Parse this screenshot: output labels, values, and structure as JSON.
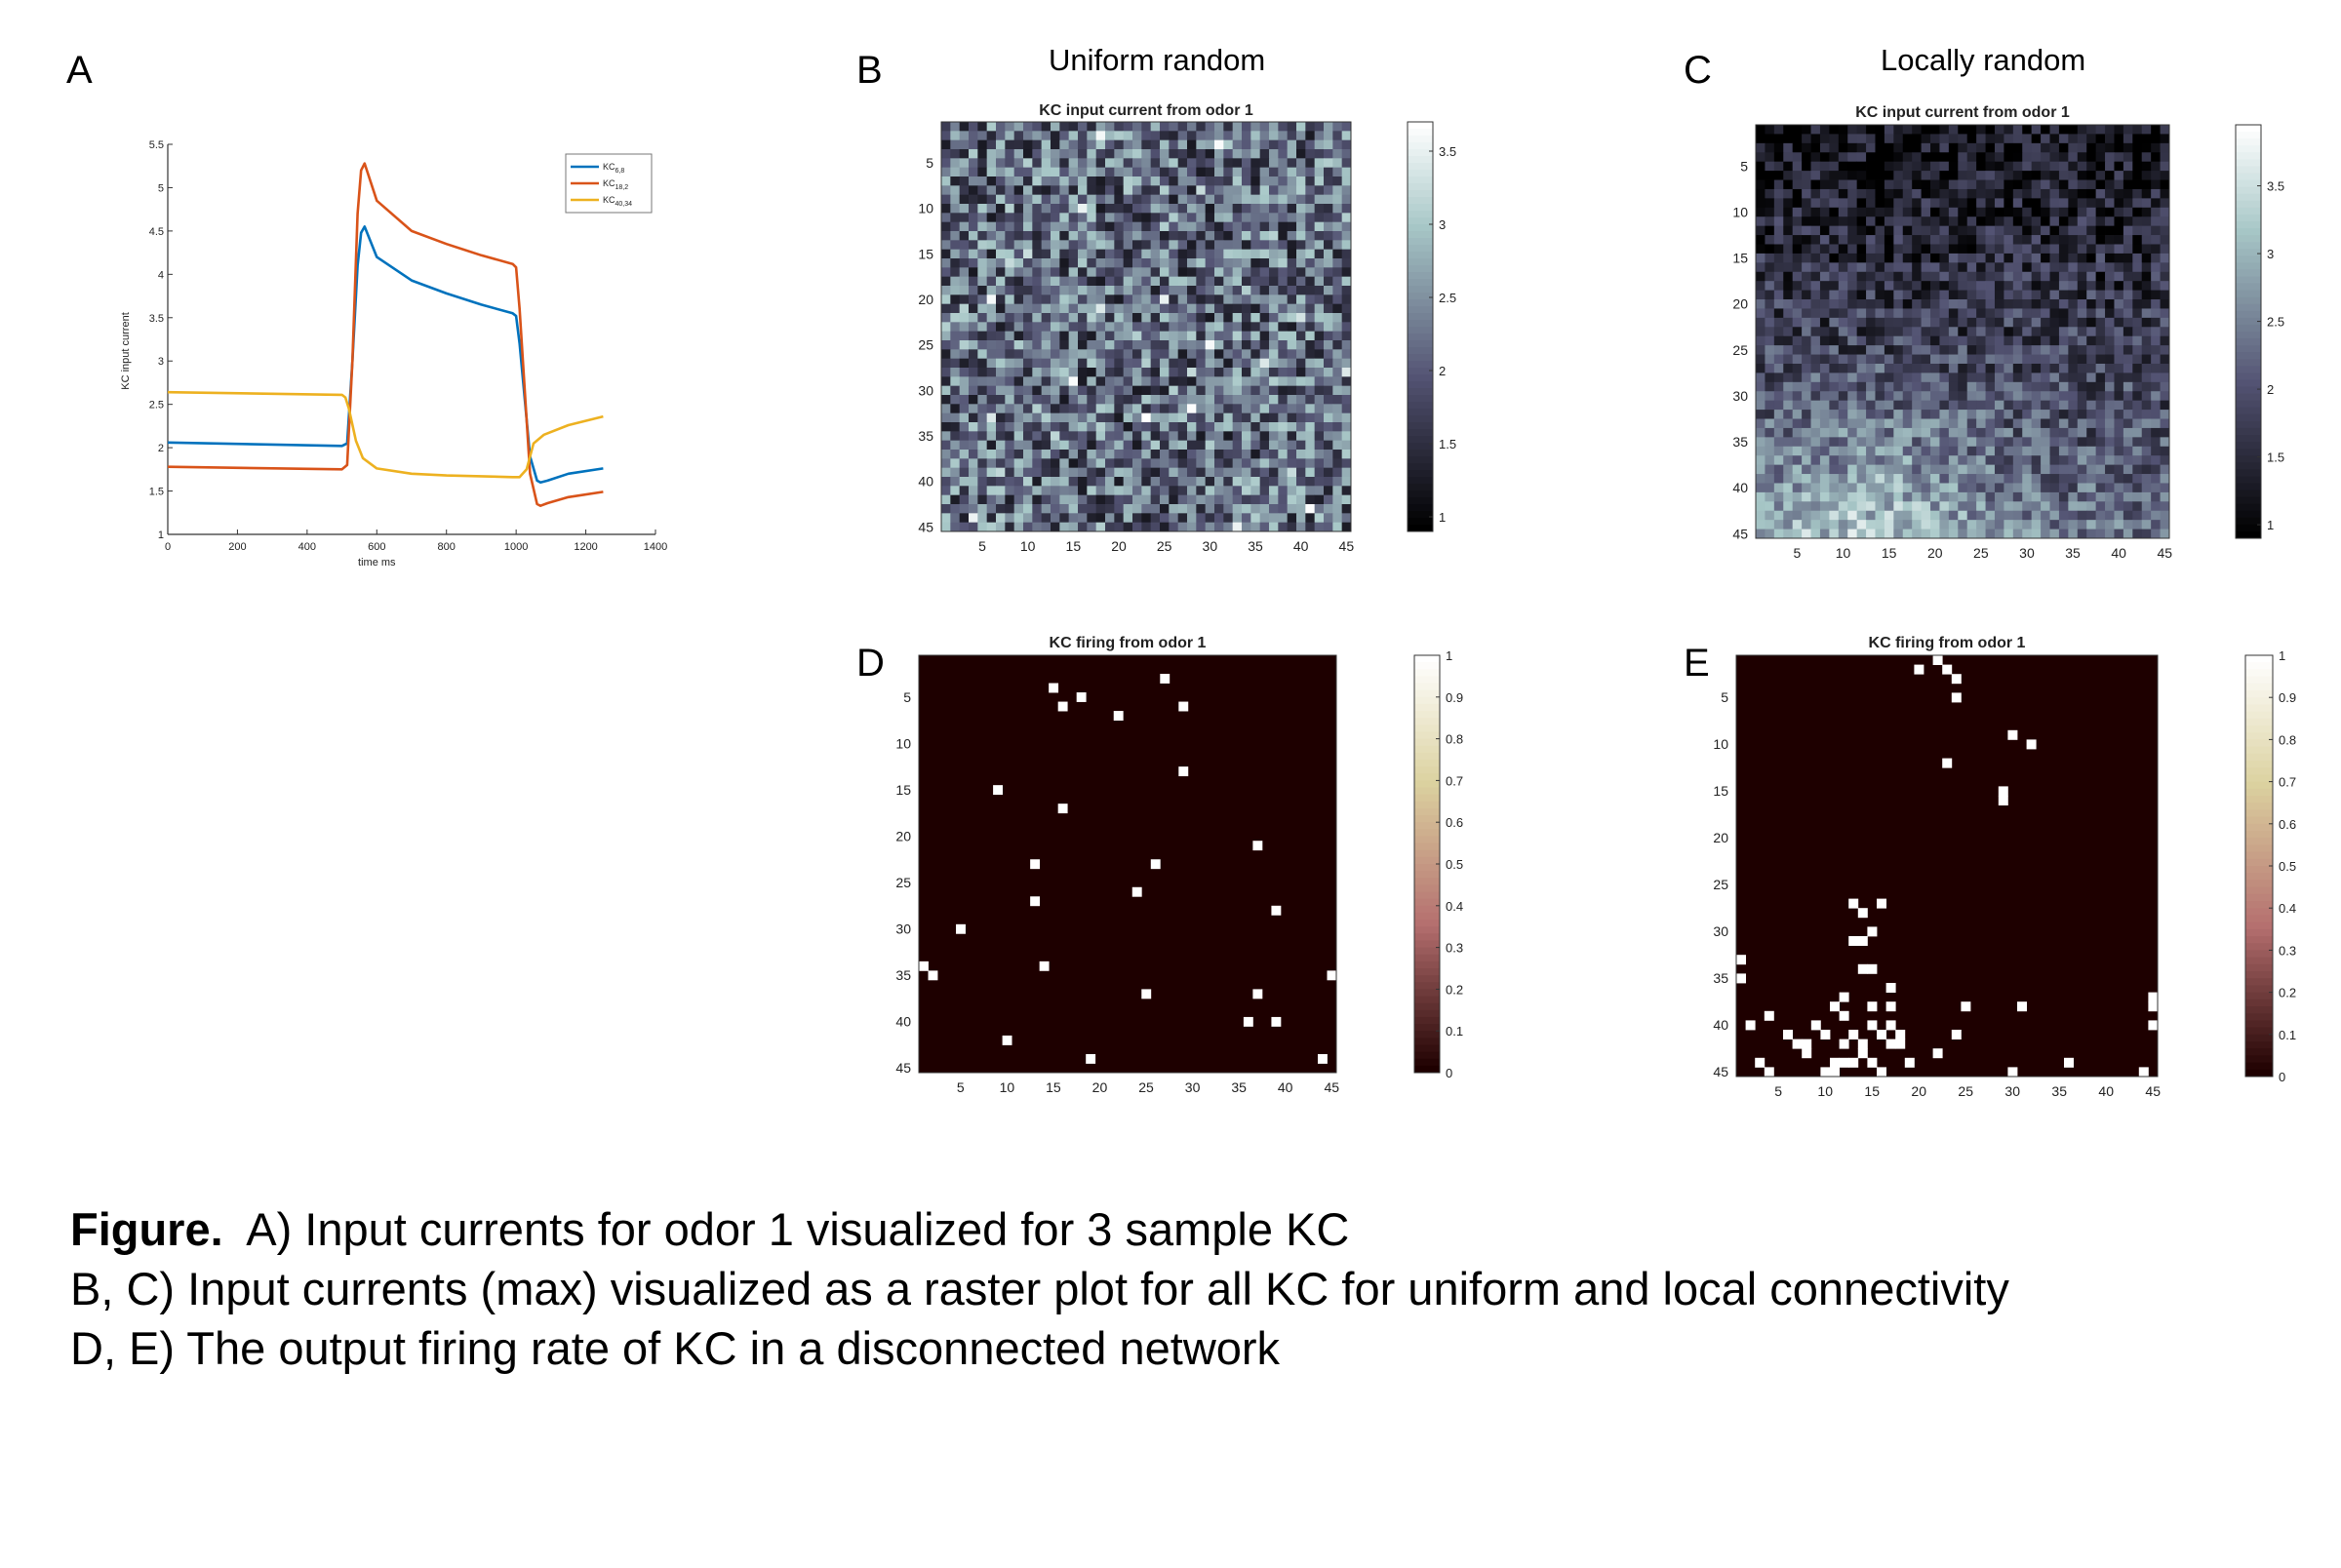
{
  "panel_labels": {
    "a": "A",
    "b": "B",
    "c": "C",
    "d": "D",
    "e": "E"
  },
  "column_titles": {
    "uniform": "Uniform random",
    "local": "Locally random"
  },
  "caption": {
    "bold": "Figure.",
    "line1": "A) Input currents for odor 1 visualized for 3 sample KC",
    "line2": "B, C) Input currents (max) visualized as a raster plot for all KC for uniform and local connectivity",
    "line3": "D, E) The output firing rate of KC in a disconnected network"
  },
  "chart_data": [
    {
      "id": "A",
      "type": "line",
      "title": "",
      "xlabel": "time ms",
      "ylabel": "KC input current",
      "xlim": [
        0,
        1400
      ],
      "ylim": [
        1,
        5.5
      ],
      "xticks": [
        0,
        200,
        400,
        600,
        800,
        1000,
        1200,
        1400
      ],
      "yticks": [
        1,
        1.5,
        2,
        2.5,
        3,
        3.5,
        4,
        4.5,
        5,
        5.5
      ],
      "legend_position": "top-right",
      "series": [
        {
          "name": "KC6,8",
          "base": "KC",
          "sub": "6,8",
          "color": "#0072BD",
          "x": [
            0,
            500,
            515,
            530,
            545,
            555,
            565,
            600,
            700,
            800,
            900,
            990,
            1000,
            1010,
            1040,
            1060,
            1070,
            1090,
            1150,
            1250
          ],
          "y": [
            2.06,
            2.02,
            2.05,
            3.0,
            4.1,
            4.48,
            4.55,
            4.2,
            3.93,
            3.78,
            3.65,
            3.55,
            3.52,
            3.2,
            1.9,
            1.62,
            1.6,
            1.62,
            1.7,
            1.76
          ]
        },
        {
          "name": "KC18,2",
          "base": "KC",
          "sub": "18,2",
          "color": "#D95319",
          "x": [
            0,
            500,
            515,
            530,
            545,
            555,
            565,
            600,
            700,
            800,
            900,
            990,
            1000,
            1010,
            1040,
            1060,
            1070,
            1090,
            1150,
            1250
          ],
          "y": [
            1.78,
            1.75,
            1.8,
            3.0,
            4.7,
            5.2,
            5.28,
            4.85,
            4.5,
            4.35,
            4.22,
            4.12,
            4.08,
            3.6,
            1.7,
            1.35,
            1.33,
            1.36,
            1.43,
            1.49
          ]
        },
        {
          "name": "KC40,34",
          "base": "KC",
          "sub": "40,34",
          "color": "#EDB120",
          "x": [
            0,
            500,
            510,
            520,
            540,
            560,
            600,
            700,
            800,
            900,
            990,
            1010,
            1030,
            1050,
            1080,
            1150,
            1250
          ],
          "y": [
            2.64,
            2.61,
            2.58,
            2.45,
            2.08,
            1.88,
            1.76,
            1.7,
            1.68,
            1.67,
            1.66,
            1.66,
            1.75,
            2.05,
            2.15,
            2.26,
            2.36
          ]
        }
      ]
    },
    {
      "id": "B",
      "type": "heatmap",
      "title": "KC input current from odor 1",
      "rows": 45,
      "cols": 45,
      "colormap": "bone",
      "clim": [
        0.9,
        3.7
      ],
      "colorbar_ticks": [
        1,
        1.5,
        2,
        2.5,
        3,
        3.5
      ],
      "xticks": [
        5,
        10,
        15,
        20,
        25,
        30,
        35,
        40,
        45
      ],
      "yticks": [
        5,
        10,
        15,
        20,
        25,
        30,
        35,
        40,
        45
      ],
      "values_note": "uniform random noise, mean ~2, range 1–3.6",
      "generator": {
        "mode": "uniform",
        "seed": 7
      }
    },
    {
      "id": "C",
      "type": "heatmap",
      "title": "KC input current from odor 1",
      "rows": 45,
      "cols": 45,
      "colormap": "bone",
      "clim": [
        0.9,
        3.95
      ],
      "colorbar_ticks": [
        1,
        1.5,
        2,
        2.5,
        3,
        3.5
      ],
      "xticks": [
        5,
        10,
        15,
        20,
        25,
        30,
        35,
        40,
        45
      ],
      "yticks": [
        5,
        10,
        15,
        20,
        25,
        30,
        35,
        40,
        45
      ],
      "values_note": "locally random: low in upper rows, high in lower-left rows",
      "generator": {
        "mode": "local",
        "seed": 13
      }
    },
    {
      "id": "D",
      "type": "heatmap",
      "title": "KC firing from odor 1",
      "rows": 45,
      "cols": 45,
      "colormap": "pink",
      "clim": [
        0,
        1
      ],
      "colorbar_ticks": [
        0,
        0.1,
        0.2,
        0.3,
        0.4,
        0.5,
        0.6,
        0.7,
        0.8,
        0.9,
        1
      ],
      "xticks": [
        5,
        10,
        15,
        20,
        25,
        30,
        35,
        40,
        45
      ],
      "yticks": [
        5,
        10,
        15,
        20,
        25,
        30,
        35,
        40,
        45
      ],
      "active_cells": [
        [
          4,
          15
        ],
        [
          5,
          18
        ],
        [
          6,
          16
        ],
        [
          3,
          27
        ],
        [
          6,
          29
        ],
        [
          7,
          22
        ],
        [
          13,
          29
        ],
        [
          15,
          9
        ],
        [
          17,
          16
        ],
        [
          21,
          37
        ],
        [
          23,
          13
        ],
        [
          23,
          26
        ],
        [
          26,
          24
        ],
        [
          27,
          13
        ],
        [
          28,
          39
        ],
        [
          30,
          5
        ],
        [
          34,
          1
        ],
        [
          35,
          2
        ],
        [
          34,
          14
        ],
        [
          35,
          45
        ],
        [
          37,
          25
        ],
        [
          37,
          37
        ],
        [
          40,
          36
        ],
        [
          40,
          39
        ],
        [
          42,
          10
        ],
        [
          44,
          19
        ],
        [
          44,
          44
        ]
      ]
    },
    {
      "id": "E",
      "type": "heatmap",
      "title": "KC firing from odor 1",
      "rows": 45,
      "cols": 45,
      "colormap": "pink",
      "clim": [
        0,
        1
      ],
      "colorbar_ticks": [
        0,
        0.1,
        0.2,
        0.3,
        0.4,
        0.5,
        0.6,
        0.7,
        0.8,
        0.9,
        1
      ],
      "xticks": [
        5,
        10,
        15,
        20,
        25,
        30,
        35,
        40,
        45
      ],
      "yticks": [
        5,
        10,
        15,
        20,
        25,
        30,
        35,
        40,
        45
      ],
      "active_cells": [
        [
          1,
          22
        ],
        [
          2,
          20
        ],
        [
          3,
          24
        ],
        [
          2,
          23
        ],
        [
          5,
          24
        ],
        [
          9,
          30
        ],
        [
          10,
          32
        ],
        [
          12,
          23
        ],
        [
          15,
          29
        ],
        [
          16,
          29
        ],
        [
          27,
          13
        ],
        [
          27,
          16
        ],
        [
          28,
          14
        ],
        [
          30,
          15
        ],
        [
          31,
          13
        ],
        [
          31,
          14
        ],
        [
          34,
          14
        ],
        [
          34,
          15
        ],
        [
          33,
          1
        ],
        [
          35,
          1
        ],
        [
          36,
          17
        ],
        [
          37,
          12
        ],
        [
          38,
          11
        ],
        [
          38,
          15
        ],
        [
          38,
          25
        ],
        [
          38,
          17
        ],
        [
          38,
          31
        ],
        [
          37,
          45
        ],
        [
          38,
          45
        ],
        [
          39,
          4
        ],
        [
          39,
          12
        ],
        [
          40,
          2
        ],
        [
          40,
          9
        ],
        [
          40,
          15
        ],
        [
          40,
          17
        ],
        [
          40,
          45
        ],
        [
          41,
          6
        ],
        [
          41,
          10
        ],
        [
          41,
          13
        ],
        [
          41,
          16
        ],
        [
          41,
          18
        ],
        [
          41,
          24
        ],
        [
          42,
          7
        ],
        [
          42,
          8
        ],
        [
          42,
          12
        ],
        [
          42,
          14
        ],
        [
          42,
          17
        ],
        [
          42,
          18
        ],
        [
          43,
          8
        ],
        [
          43,
          14
        ],
        [
          43,
          22
        ],
        [
          44,
          3
        ],
        [
          44,
          11
        ],
        [
          44,
          12
        ],
        [
          44,
          13
        ],
        [
          44,
          15
        ],
        [
          44,
          19
        ],
        [
          44,
          36
        ],
        [
          45,
          4
        ],
        [
          45,
          10
        ],
        [
          45,
          11
        ],
        [
          45,
          16
        ],
        [
          45,
          30
        ],
        [
          45,
          44
        ]
      ]
    }
  ]
}
